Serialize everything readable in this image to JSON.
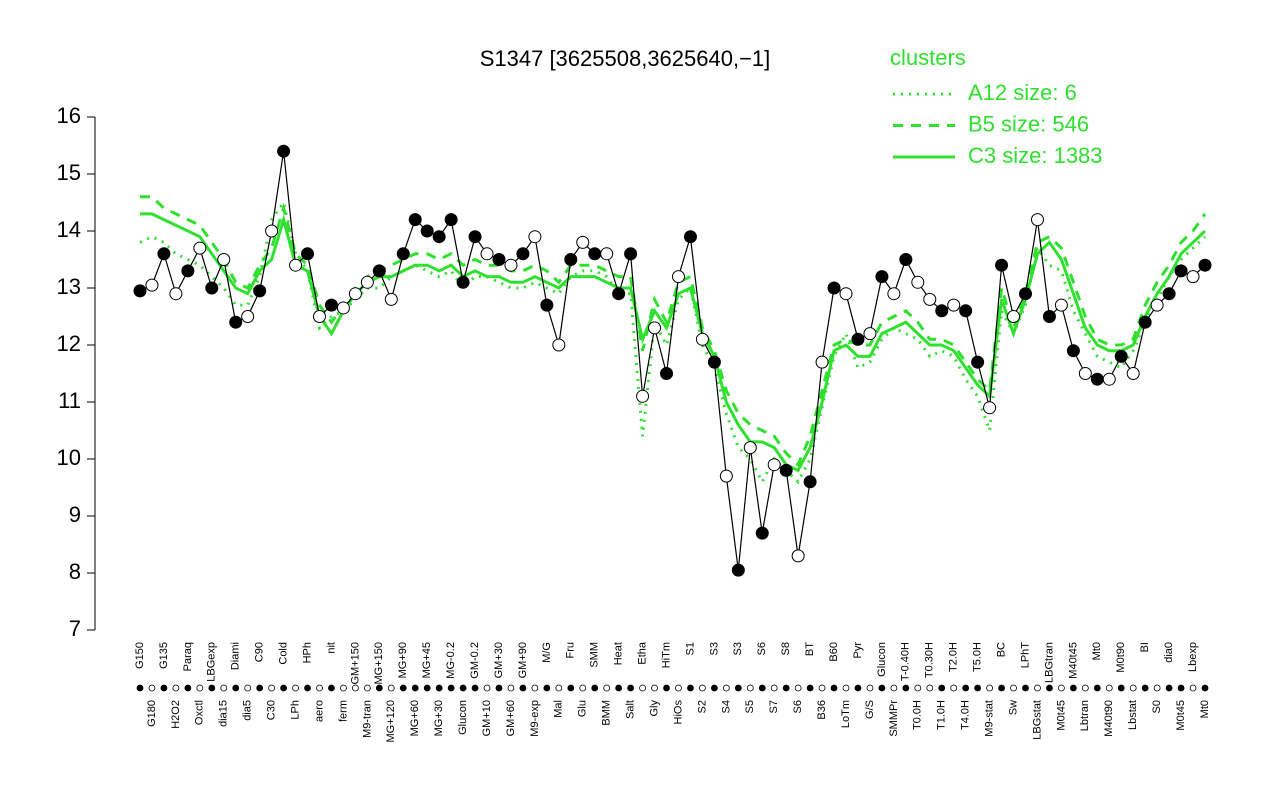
{
  "chart_data": {
    "type": "line",
    "title": "S1347 [3625508,3625640,−1]",
    "legend_title": "clusters",
    "legend_position": "top-right",
    "ylim": [
      7,
      16
    ],
    "yticks": [
      7,
      8,
      9,
      10,
      11,
      12,
      13,
      14,
      15,
      16
    ],
    "categories": [
      "G150",
      "G180",
      "G135",
      "H2O2",
      "Paraq",
      "Oxctl",
      "LBGexp",
      "dia15",
      "Diami",
      "dia5",
      "C90",
      "C30",
      "Cold",
      "LPh",
      "HPh",
      "aero",
      "nit",
      "ferm",
      "GM+150",
      "M9-tran",
      "MG+150",
      "MG+120",
      "MG+90",
      "MG+60",
      "MG+45",
      "MG+30",
      "MG-0.2",
      "Glucon",
      "GM-0.2",
      "GM+10",
      "GM+30",
      "GM+60",
      "GM+90",
      "M9-exp",
      "M/G",
      "Mal",
      "Fru",
      "Glu",
      "SMM",
      "BMM",
      "Heat",
      "Salt",
      "Etha",
      "Gly",
      "HiTm",
      "HiOs",
      "S1",
      "S2",
      "S3",
      "S4",
      "S3",
      "S5",
      "S6",
      "S7",
      "S8",
      "S6",
      "BT",
      "B36",
      "B60",
      "LoTm",
      "Pyr",
      "G/S",
      "Glucon",
      "SMMPr",
      "T-0.40H",
      "T0.0H",
      "T0.30H",
      "T1.0H",
      "T2.0H",
      "T4.0H",
      "T5.0H",
      "M9-stat",
      "BC",
      "Sw",
      "LPhT",
      "LBGstat",
      "LBGtran",
      "M0t45",
      "M40t45",
      "Lbtran",
      "Mt0",
      "M40t90",
      "M0t90",
      "Lbstat",
      "BI",
      "S0",
      "dia0",
      "M0t45",
      "Lbexp",
      "Mt0"
    ],
    "values": [
      12.95,
      13.05,
      13.6,
      12.9,
      13.3,
      13.7,
      13.0,
      13.5,
      12.4,
      12.5,
      12.95,
      14.0,
      15.4,
      13.4,
      13.6,
      12.5,
      12.7,
      12.65,
      12.9,
      13.1,
      13.3,
      12.8,
      13.6,
      14.2,
      14.0,
      13.9,
      14.2,
      13.1,
      13.9,
      13.6,
      13.5,
      13.4,
      13.6,
      13.9,
      12.7,
      12.0,
      13.5,
      13.8,
      13.6,
      13.6,
      12.9,
      13.6,
      11.1,
      12.3,
      11.5,
      13.2,
      13.9,
      12.1,
      11.7,
      9.7,
      8.05,
      10.2,
      8.7,
      9.9,
      9.8,
      8.3,
      9.6,
      11.7,
      13.0,
      12.9,
      12.1,
      12.2,
      13.2,
      12.9,
      13.5,
      13.1,
      12.8,
      12.6,
      12.7,
      12.6,
      11.7,
      10.9,
      13.4,
      12.5,
      12.9,
      14.2,
      12.5,
      12.7,
      11.9,
      11.5,
      11.4,
      11.4,
      11.8,
      11.5,
      12.4,
      12.7,
      12.9,
      13.3,
      13.2,
      13.4
    ],
    "color": "#000000",
    "point_colors": [
      "#000",
      "#fff",
      "#000",
      "#fff",
      "#000",
      "#fff",
      "#000",
      "#fff",
      "#000",
      "#fff",
      "#000",
      "#fff",
      "#000",
      "#fff",
      "#000",
      "#fff",
      "#000",
      "#fff",
      "#fff",
      "#fff",
      "#000",
      "#fff",
      "#000",
      "#000",
      "#000",
      "#000",
      "#000",
      "#000",
      "#000",
      "#fff",
      "#000",
      "#fff",
      "#000",
      "#fff",
      "#000",
      "#fff",
      "#000",
      "#fff",
      "#000",
      "#fff",
      "#000",
      "#000",
      "#fff",
      "#fff",
      "#000",
      "#fff",
      "#000",
      "#fff",
      "#000",
      "#fff",
      "#000",
      "#fff",
      "#000",
      "#fff",
      "#000",
      "#fff",
      "#000",
      "#fff",
      "#000",
      "#fff",
      "#000",
      "#fff",
      "#000",
      "#fff",
      "#000",
      "#fff",
      "#fff",
      "#000",
      "#fff",
      "#000",
      "#000",
      "#fff",
      "#000",
      "#fff",
      "#000",
      "#fff",
      "#000",
      "#fff",
      "#000",
      "#fff",
      "#000",
      "#fff",
      "#000",
      "#fff",
      "#000",
      "#fff",
      "#000",
      "#000",
      "#fff",
      "#000"
    ],
    "series": [
      {
        "name": "A12 size: 6",
        "color": "#2fe02f",
        "dash": "dotted",
        "values": [
          13.8,
          13.9,
          13.8,
          13.6,
          13.5,
          13.4,
          13.2,
          13.0,
          12.7,
          12.7,
          13.2,
          14.2,
          14.5,
          13.6,
          13.3,
          12.3,
          12.5,
          12.6,
          12.8,
          13.0,
          13.0,
          13.2,
          13.3,
          13.4,
          13.3,
          13.2,
          13.3,
          13.0,
          13.2,
          13.2,
          13.1,
          13.0,
          13.0,
          13.1,
          13.0,
          12.9,
          13.2,
          13.3,
          13.3,
          13.2,
          12.9,
          12.9,
          10.4,
          12.4,
          12.0,
          12.8,
          13.0,
          12.0,
          11.6,
          10.8,
          10.2,
          10.0,
          9.6,
          10.0,
          9.8,
          9.6,
          10.0,
          10.9,
          11.8,
          12.2,
          11.6,
          11.7,
          12.1,
          12.3,
          12.2,
          12.1,
          11.8,
          11.9,
          11.8,
          11.4,
          11.1,
          10.5,
          12.6,
          12.2,
          12.7,
          13.7,
          13.4,
          13.3,
          12.6,
          12.2,
          11.8,
          11.7,
          11.6,
          11.9,
          12.4,
          12.8,
          13.2,
          13.5,
          13.7,
          13.9
        ]
      },
      {
        "name": "B5 size: 546",
        "color": "#2fe02f",
        "dash": "dashed",
        "values": [
          14.6,
          14.6,
          14.4,
          14.3,
          14.2,
          14.1,
          13.8,
          13.5,
          13.1,
          13.0,
          13.4,
          13.7,
          14.4,
          13.6,
          13.4,
          12.7,
          12.4,
          12.7,
          13.0,
          13.2,
          13.3,
          13.4,
          13.5,
          13.6,
          13.6,
          13.5,
          13.6,
          13.4,
          13.5,
          13.4,
          13.4,
          13.3,
          13.3,
          13.4,
          13.3,
          13.1,
          13.4,
          13.4,
          13.4,
          13.3,
          13.2,
          13.2,
          11.9,
          12.8,
          12.4,
          13.1,
          13.2,
          12.3,
          11.9,
          11.2,
          10.8,
          10.6,
          10.5,
          10.4,
          10.1,
          9.9,
          10.4,
          11.2,
          12.0,
          12.1,
          12.0,
          12.0,
          12.4,
          12.5,
          12.6,
          12.4,
          12.1,
          12.1,
          12.0,
          11.7,
          11.4,
          11.2,
          13.0,
          12.3,
          12.9,
          13.8,
          13.9,
          13.7,
          13.1,
          12.5,
          12.1,
          12.0,
          12.0,
          12.1,
          12.7,
          13.1,
          13.4,
          13.8,
          14.0,
          14.3
        ]
      },
      {
        "name": "C3 size: 1383",
        "color": "#2fe02f",
        "dash": "solid",
        "values": [
          14.3,
          14.3,
          14.2,
          14.1,
          14.0,
          13.9,
          13.6,
          13.3,
          13.0,
          12.9,
          13.3,
          13.5,
          14.2,
          13.4,
          13.3,
          12.5,
          12.2,
          12.6,
          12.9,
          13.1,
          13.2,
          13.2,
          13.3,
          13.4,
          13.4,
          13.3,
          13.4,
          13.2,
          13.3,
          13.2,
          13.2,
          13.1,
          13.1,
          13.2,
          13.1,
          13.0,
          13.2,
          13.2,
          13.2,
          13.1,
          13.0,
          13.0,
          12.1,
          12.6,
          12.3,
          12.9,
          13.0,
          12.2,
          11.8,
          11.0,
          10.6,
          10.3,
          10.3,
          10.2,
          9.9,
          9.8,
          10.2,
          11.0,
          11.9,
          12.0,
          11.8,
          11.8,
          12.2,
          12.3,
          12.4,
          12.2,
          12.0,
          12.0,
          11.9,
          11.6,
          11.3,
          11.1,
          12.8,
          12.2,
          12.8,
          13.6,
          13.8,
          13.5,
          12.9,
          12.3,
          12.0,
          11.9,
          11.9,
          12.0,
          12.5,
          12.9,
          13.2,
          13.6,
          13.8,
          14.0
        ]
      }
    ]
  }
}
